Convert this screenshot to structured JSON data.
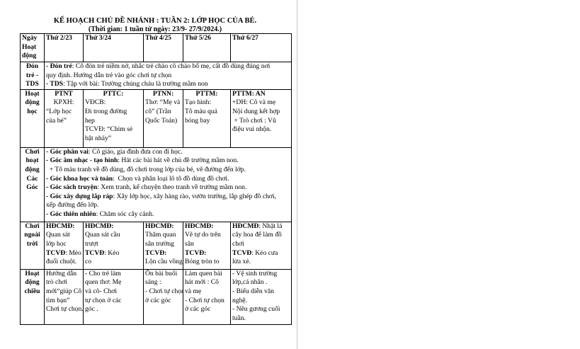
{
  "title": "KẾ HOẠCH CHỦ ĐỀ NHÁNH : TUẦN 2: LỚP HỌC CỦA BÉ.",
  "subtitle": "(Thời gian: 1 tuần từ ngày: 23/9- 27/9/2024.)",
  "table": {
    "rows": [
      {
        "label": [
          "Ngày",
          "Hoạt",
          "động"
        ],
        "cells": [
          [
            [
              {
                "b": "Thứ 2/23"
              }
            ]
          ],
          [
            [
              {
                "b": "Thứ 3/24"
              }
            ]
          ],
          [
            [
              {
                "b": "Thứ 4/25"
              }
            ]
          ],
          [
            [
              {
                "b": "Thứ 5/26"
              }
            ]
          ],
          [
            [
              {
                "b": "Thứ 6/27"
              }
            ]
          ]
        ]
      },
      {
        "label": [
          "Đón",
          "trẻ -",
          "TDS"
        ],
        "span": [
          [
            {
              "b": "- Đón trẻ"
            },
            {
              "t": ": Cô đón trẻ niềm nở, nhắc trẻ chào cô chào bố mẹ, cất đồ dùng đúng nơi"
            }
          ],
          [
            {
              "t": "quy định. Hướng dẫn trẻ vào góc chơi tự chọn"
            }
          ],
          [
            {
              "b": "- TDS"
            },
            {
              "t": ": Tập với bài: Trường chúng cháu là trường mầm non"
            }
          ]
        ]
      },
      {
        "label": [
          "Hoạt",
          "động",
          "học"
        ],
        "cells": [
          [
            [
              {
                "b": "PTNT",
                "c": true
              }
            ],
            [
              {
                "t": "KPXH:",
                "c": true
              }
            ],
            [
              {
                "t": "“Lớp học"
              }
            ],
            [
              {
                "t": "của bé”"
              }
            ]
          ],
          [
            [
              {
                "b": "PTTC:",
                "c": true
              }
            ],
            [
              {
                "t": "VĐCB:"
              }
            ],
            [
              {
                "t": "Đi trong đường"
              }
            ],
            [
              {
                "t": "hẹp"
              }
            ],
            [
              {
                "t": "TCVĐ: “Chim sẻ"
              }
            ],
            [
              {
                "t": "bật nhảy”"
              }
            ]
          ],
          [
            [
              {
                "b": "PTNN:",
                "c": true
              }
            ],
            [
              {
                "t": "Thơ: “Mẹ và"
              }
            ],
            [
              {
                "t": "cô” (Trần"
              }
            ],
            [
              {
                "t": "Quốc Toản)"
              }
            ]
          ],
          [
            [
              {
                "b": "PTTM:",
                "c": true
              }
            ],
            [
              {
                "t": "Tạo hình:"
              }
            ],
            [
              {
                "t": "Tô màu quả"
              }
            ],
            [
              {
                "t": "bóng bay"
              }
            ]
          ],
          [
            [
              {
                "b": "PTTM: AN"
              }
            ],
            [
              {
                "t": "+DH: Cô và mẹ"
              }
            ],
            [
              {
                "t": "Nội dung kết hợp"
              }
            ],
            [
              {
                "t": " + Trò chơi : Vũ"
              }
            ],
            [
              {
                "t": "điệu vui nhộn."
              }
            ]
          ]
        ]
      },
      {
        "label": [
          "Chơi",
          "hoạt",
          "động",
          "Các",
          "Góc"
        ],
        "span": [
          [
            {
              "b": "- Góc phân vai"
            },
            {
              "t": ": Cô giáo, gia đình đưa con đi học."
            }
          ],
          [
            {
              "b": "- Góc âm nhạc - tạo hình"
            },
            {
              "t": ": Hát các bài hát về chủ đề trường mầm non."
            }
          ],
          [
            {
              "t": "  + Tô màu tranh về đồ dùng, đồ chơi trong lớp của bé, vẽ đường đến lớp."
            }
          ],
          [
            {
              "b": "- Góc khoa học và toán"
            },
            {
              "t": ":  Chọn và phân loại lô tô đồ dùng đồ chơi."
            }
          ],
          [
            {
              "b": "- Góc sách truyện"
            },
            {
              "t": ": Xem tranh, kể chuyện theo tranh về trường mầm non."
            }
          ],
          [
            {
              "b": "- Góc xây dựng lắp ráp"
            },
            {
              "t": ": Xây lớp học, xây hàng rào, vườn trường, lắp ghép đồ chơi,"
            }
          ],
          [
            {
              "t": "xếp đường đến lớp."
            }
          ],
          [
            {
              "b": "- Góc thiên nhiên"
            },
            {
              "t": ": Chăm sóc cây cảnh."
            }
          ]
        ]
      },
      {
        "label": [
          "Chơi",
          "ngoài",
          "trời"
        ],
        "cells": [
          [
            [
              {
                "b": "HĐCMĐ:"
              }
            ],
            [
              {
                "t": "Quan sát"
              }
            ],
            [
              {
                "t": "lớp học"
              }
            ],
            [
              {
                "b": "TCVĐ"
              },
              {
                "t": ": Mèo"
              }
            ],
            [
              {
                "t": "đuổi chuột."
              }
            ]
          ],
          [
            [
              {
                "b": "HĐCMĐ:"
              }
            ],
            [
              {
                "t": "Quan sát cầu"
              }
            ],
            [
              {
                "t": "trượt"
              }
            ],
            [
              {
                "b": "TCVĐ"
              },
              {
                "t": ": Kéo"
              }
            ],
            [
              {
                "t": "co"
              }
            ]
          ],
          [
            [
              {
                "b": "HĐCMĐ:"
              }
            ],
            [
              {
                "t": "Thăm quan"
              }
            ],
            [
              {
                "t": "sân trường"
              }
            ],
            [
              {
                "b": "TCVĐ:"
              }
            ],
            [
              {
                "t": "Lộn cầu vồng"
              }
            ]
          ],
          [
            [
              {
                "b": "HĐCMĐ:"
              }
            ],
            [
              {
                "t": "Vẽ tự do trên"
              }
            ],
            [
              {
                "t": "sân"
              }
            ],
            [
              {
                "b": "TCVĐ:"
              }
            ],
            [
              {
                "t": "Bóng tròn to"
              }
            ]
          ],
          [
            [
              {
                "b": "HĐCMĐ"
              },
              {
                "t": ": Nhặt lá"
              }
            ],
            [
              {
                "t": "cây hoa để làm đồ"
              }
            ],
            [
              {
                "t": "chơi"
              }
            ],
            [
              {
                "b": "TCVĐ"
              },
              {
                "t": ": Kéo cưa"
              }
            ],
            [
              {
                "t": "lừa xẻ."
              }
            ]
          ]
        ]
      },
      {
        "label": [
          "Hoạt",
          "động",
          "chiều"
        ],
        "cells": [
          [
            [
              {
                "t": "Hướng dẫn"
              }
            ],
            [
              {
                "t": "trò chơi"
              }
            ],
            [
              {
                "t": "mới“giúp Cô"
              }
            ],
            [
              {
                "t": "tìm bạn”"
              }
            ],
            [
              {
                "t": "Chơi tự chọn."
              }
            ]
          ],
          [
            [
              {
                "t": "- Cho trẻ làm"
              }
            ],
            [
              {
                "t": "quen thơ: Mẹ"
              }
            ],
            [
              {
                "t": "và cô- Chơi"
              }
            ],
            [
              {
                "t": "tự chọn ở các"
              }
            ],
            [
              {
                "t": "góc ."
              }
            ]
          ],
          [
            [
              {
                "t": "Ôn bài buổi"
              }
            ],
            [
              {
                "t": "sáng :"
              }
            ],
            [
              {
                "t": "- Chơi tự chọn"
              }
            ],
            [
              {
                "t": "ở các góc"
              }
            ]
          ],
          [
            [
              {
                "t": "Làm quen bài"
              }
            ],
            [
              {
                "t": "hát mới : Cô"
              }
            ],
            [
              {
                "t": "và mẹ"
              }
            ],
            [
              {
                "t": "- Chơi tự chọn"
              }
            ],
            [
              {
                "t": "ở các góc"
              }
            ]
          ],
          [
            [
              {
                "t": "- Vệ sinh trường"
              }
            ],
            [
              {
                "t": "lớp,cá nhân ."
              }
            ],
            [
              {
                "t": "- Biểu diễn văn"
              }
            ],
            [
              {
                "t": "nghệ."
              }
            ],
            [
              {
                "t": "- Nêu gương cuối"
              }
            ],
            [
              {
                "t": "tuần."
              }
            ]
          ]
        ]
      }
    ]
  }
}
